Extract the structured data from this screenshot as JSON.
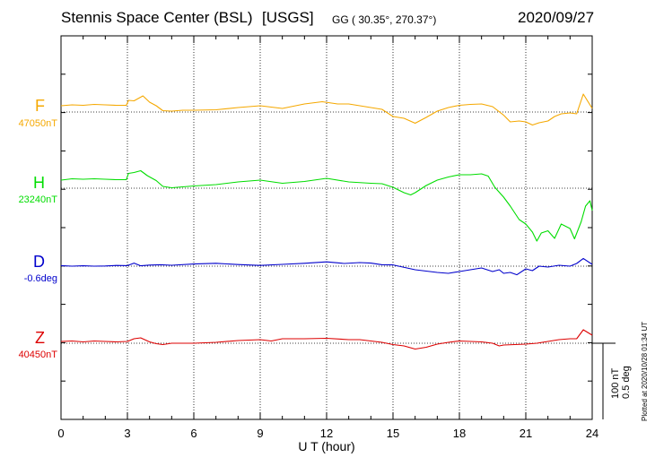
{
  "header": {
    "station": "Stennis Space Center (BSL)",
    "network": "[USGS]",
    "coords": "GG ( 30.35°, 270.37°)",
    "date": "2020/09/27"
  },
  "plotted_note": "Plotted at 2020/10/28 01:34 UT",
  "scale": {
    "nt": "100 nT",
    "deg": "0.5 deg"
  },
  "colors": {
    "F": "#f5a800",
    "H": "#00dd00",
    "D": "#0000cc",
    "Z": "#dd0000"
  },
  "chart_data": {
    "type": "line",
    "xlabel": "U T (hour)",
    "xlim": [
      0,
      24
    ],
    "xticks": [
      0,
      3,
      6,
      9,
      12,
      15,
      18,
      21,
      24
    ],
    "grid": true,
    "series": [
      {
        "name": "F",
        "baseline_label": "47050nT",
        "unit": "nT",
        "baseline": 47050,
        "x": [
          0,
          0.5,
          1,
          1.5,
          2,
          2.5,
          2.95,
          3.05,
          3.3,
          3.7,
          4,
          4.3,
          4.6,
          5,
          5.5,
          6,
          7,
          8,
          9,
          10,
          11,
          11.8,
          12.5,
          13,
          14,
          14.5,
          15,
          15.5,
          16,
          16.5,
          17,
          17.5,
          18,
          18.5,
          19,
          19.5,
          20,
          20.3,
          20.7,
          21,
          21.3,
          21.6,
          22,
          22.3,
          22.6,
          23,
          23.3,
          23.6,
          24
        ],
        "values": [
          14,
          16,
          15,
          17,
          16,
          15,
          15,
          26,
          25,
          36,
          22,
          14,
          3,
          2,
          4,
          4,
          5,
          10,
          14,
          8,
          18,
          23,
          18,
          18,
          10,
          6,
          -10,
          -14,
          -25,
          -12,
          2,
          10,
          15,
          17,
          18,
          12,
          -7,
          -22,
          -20,
          -22,
          -29,
          -24,
          -20,
          -10,
          -4,
          -2,
          -4,
          40,
          8
        ]
      },
      {
        "name": "H",
        "baseline_label": "23240nT",
        "unit": "nT",
        "baseline": 23240,
        "x": [
          0,
          0.5,
          1,
          1.5,
          2,
          2.5,
          2.95,
          3.05,
          3.3,
          3.6,
          3.9,
          4.3,
          4.6,
          5,
          5.5,
          6,
          7,
          8,
          9,
          10,
          11,
          12,
          13,
          14,
          14.5,
          15,
          15.5,
          15.8,
          16,
          16.5,
          17,
          17.5,
          18,
          18.5,
          19,
          19.3,
          19.6,
          20,
          20.3,
          20.7,
          21,
          21.3,
          21.5,
          21.7,
          22,
          22.3,
          22.6,
          23,
          23.2,
          23.5,
          23.7,
          23.9,
          24
        ],
        "values": [
          18,
          21,
          20,
          21,
          20,
          19,
          19,
          33,
          35,
          39,
          28,
          17,
          4,
          1,
          3,
          5,
          8,
          14,
          18,
          11,
          15,
          22,
          14,
          11,
          10,
          2,
          -10,
          -15,
          -10,
          6,
          18,
          25,
          30,
          30,
          32,
          27,
          2,
          -20,
          -40,
          -70,
          -80,
          -98,
          -118,
          -100,
          -95,
          -112,
          -80,
          -90,
          -113,
          -75,
          -40,
          -28,
          -50
        ]
      },
      {
        "name": "D",
        "baseline_label": "-0.6deg",
        "unit": "deg",
        "baseline": -0.6,
        "x": [
          0,
          0.5,
          1,
          1.5,
          2,
          2.5,
          3,
          3.3,
          3.6,
          4,
          4.5,
          5,
          6,
          7,
          8,
          9,
          10,
          11,
          12,
          12.8,
          13.5,
          14,
          14.5,
          15,
          16,
          17,
          17.5,
          18,
          18.5,
          19,
          19.5,
          19.8,
          20,
          20.3,
          20.6,
          21,
          21.3,
          21.6,
          22,
          22.5,
          23,
          23.3,
          23.6,
          24
        ],
        "values": [
          0.006,
          0,
          0.004,
          0,
          0.002,
          0.008,
          0.006,
          0.034,
          0.004,
          0.012,
          0.016,
          0.01,
          0.024,
          0.032,
          0.018,
          0.008,
          0.02,
          0.032,
          0.048,
          0.03,
          0.04,
          0.034,
          0.016,
          0.014,
          -0.04,
          -0.07,
          -0.08,
          -0.06,
          -0.04,
          -0.02,
          -0.06,
          -0.04,
          -0.08,
          -0.07,
          -0.096,
          -0.03,
          -0.05,
          0,
          -0.01,
          0.01,
          0,
          0.03,
          0.086,
          0.02
        ]
      },
      {
        "name": "Z",
        "baseline_label": "40450nT",
        "unit": "nT",
        "baseline": 40450,
        "x": [
          0,
          0.5,
          1,
          1.5,
          2,
          2.5,
          3,
          3.3,
          3.6,
          4,
          4.3,
          4.6,
          5,
          6,
          7,
          8,
          9,
          9.5,
          10,
          11,
          12,
          13,
          13.5,
          14,
          14.5,
          15,
          15.5,
          16,
          16.5,
          17,
          17.5,
          18,
          18.5,
          19,
          19.5,
          19.8,
          20,
          20.5,
          21,
          21.5,
          22,
          22.5,
          23,
          23.3,
          23.6,
          24
        ],
        "values": [
          4,
          5,
          3,
          5,
          4,
          3,
          4,
          10,
          12,
          3,
          -1,
          -3,
          0,
          0,
          2,
          6,
          8,
          5,
          10,
          10,
          11,
          8,
          8,
          5,
          2,
          -3,
          -6,
          -13,
          -9,
          -2,
          2,
          5,
          4,
          3,
          0,
          -6,
          -4,
          -3,
          -2,
          0,
          4,
          8,
          10,
          10,
          30,
          18
        ]
      }
    ]
  }
}
